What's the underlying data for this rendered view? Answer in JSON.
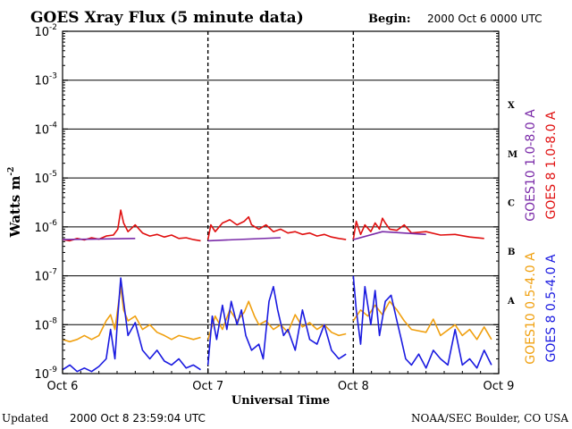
{
  "header": {
    "title": "GOES Xray Flux (5 minute data)",
    "begin_label": "Begin:",
    "begin_value": "2000 Oct 6 0000 UTC"
  },
  "footer": {
    "updated_label": "Updated",
    "updated_value": "2000 Oct  8 23:59:04 UTC",
    "credit": "NOAA/SEC Boulder, CO USA"
  },
  "chart_data": {
    "type": "line",
    "title": "GOES Xray Flux (5 minute data)",
    "xlabel": "Universal Time",
    "ylabel": "Watts m",
    "ylabel_superscript": "-2",
    "yscale": "log",
    "ylim": [
      1e-09,
      0.01
    ],
    "y_ticks": [
      {
        "base": "10",
        "exp": "-9"
      },
      {
        "base": "10",
        "exp": "-8"
      },
      {
        "base": "10",
        "exp": "-7"
      },
      {
        "base": "10",
        "exp": "-6"
      },
      {
        "base": "10",
        "exp": "-5"
      },
      {
        "base": "10",
        "exp": "-4"
      },
      {
        "base": "10",
        "exp": "-3"
      },
      {
        "base": "10",
        "exp": "-2"
      }
    ],
    "x_ticks": [
      "Oct 6",
      "Oct 7",
      "Oct 8",
      "Oct 9"
    ],
    "flare_classes": [
      {
        "label": "A",
        "level": 1e-08
      },
      {
        "label": "B",
        "level": 1e-07
      },
      {
        "label": "C",
        "level": 1e-06
      },
      {
        "label": "M",
        "level": 1e-05
      },
      {
        "label": "X",
        "level": 0.0001
      }
    ],
    "legend": [
      {
        "name": "GOES10 1.0-8.0 A",
        "color": "#7a2aa8"
      },
      {
        "name": "GOES 8 1.0-8.0 A",
        "color": "#e01010"
      },
      {
        "name": "GOES10 0.5-4.0 A",
        "color": "#f0a010"
      },
      {
        "name": "GOES 8 0.5-4.0 A",
        "color": "#1a1ae0"
      }
    ],
    "grid": true,
    "x_range_days": [
      0,
      3
    ],
    "series": [
      {
        "name": "GOES10 1.0-8.0 A",
        "color": "#7a2aa8",
        "points": [
          [
            0.0,
            5.5e-07
          ],
          [
            0.5,
            5.8e-07
          ],
          [
            1.0,
            5.2e-07
          ],
          [
            1.5,
            6e-07
          ],
          [
            2.0,
            5.5e-07
          ],
          [
            2.2,
            8e-07
          ],
          [
            2.5,
            7e-07
          ],
          [
            3.0,
            5.2e-07
          ]
        ]
      },
      {
        "name": "GOES 8 1.0-8.0 A",
        "color": "#e01010",
        "points": [
          [
            0.0,
            5.5e-07
          ],
          [
            0.05,
            5.2e-07
          ],
          [
            0.1,
            5.8e-07
          ],
          [
            0.15,
            5.4e-07
          ],
          [
            0.2,
            6e-07
          ],
          [
            0.25,
            5.6e-07
          ],
          [
            0.3,
            6.5e-07
          ],
          [
            0.35,
            6.8e-07
          ],
          [
            0.38,
            9e-07
          ],
          [
            0.4,
            2.2e-06
          ],
          [
            0.42,
            1.2e-06
          ],
          [
            0.45,
            8e-07
          ],
          [
            0.5,
            1.1e-06
          ],
          [
            0.55,
            7.5e-07
          ],
          [
            0.6,
            6.5e-07
          ],
          [
            0.65,
            7e-07
          ],
          [
            0.7,
            6.2e-07
          ],
          [
            0.75,
            6.8e-07
          ],
          [
            0.8,
            5.8e-07
          ],
          [
            0.85,
            6e-07
          ],
          [
            0.9,
            5.5e-07
          ],
          [
            0.95,
            5.2e-07
          ],
          [
            1.0,
            5.5e-07
          ],
          [
            1.02,
            1.1e-06
          ],
          [
            1.05,
            8e-07
          ],
          [
            1.1,
            1.2e-06
          ],
          [
            1.15,
            1.4e-06
          ],
          [
            1.2,
            1.1e-06
          ],
          [
            1.25,
            1.3e-06
          ],
          [
            1.28,
            1.6e-06
          ],
          [
            1.3,
            1.1e-06
          ],
          [
            1.35,
            9e-07
          ],
          [
            1.4,
            1.1e-06
          ],
          [
            1.45,
            8e-07
          ],
          [
            1.5,
            9e-07
          ],
          [
            1.55,
            7.5e-07
          ],
          [
            1.6,
            8e-07
          ],
          [
            1.65,
            7e-07
          ],
          [
            1.7,
            7.5e-07
          ],
          [
            1.75,
            6.5e-07
          ],
          [
            1.8,
            7e-07
          ],
          [
            1.85,
            6.2e-07
          ],
          [
            1.9,
            5.8e-07
          ],
          [
            1.95,
            5.5e-07
          ],
          [
            2.0,
            5.5e-07
          ],
          [
            2.02,
            1.3e-06
          ],
          [
            2.05,
            7e-07
          ],
          [
            2.08,
            1.1e-06
          ],
          [
            2.12,
            8e-07
          ],
          [
            2.15,
            1.2e-06
          ],
          [
            2.18,
            9e-07
          ],
          [
            2.2,
            1.5e-06
          ],
          [
            2.22,
            1.2e-06
          ],
          [
            2.25,
            9e-07
          ],
          [
            2.3,
            8.5e-07
          ],
          [
            2.35,
            1.1e-06
          ],
          [
            2.4,
            7.5e-07
          ],
          [
            2.5,
            8e-07
          ],
          [
            2.6,
            6.8e-07
          ],
          [
            2.7,
            7e-07
          ],
          [
            2.8,
            6.2e-07
          ],
          [
            2.9,
            5.8e-07
          ],
          [
            3.0,
            5.5e-07
          ]
        ]
      },
      {
        "name": "GOES10 0.5-4.0 A",
        "color": "#f0a010",
        "points": [
          [
            0.0,
            5e-09
          ],
          [
            0.05,
            4.5e-09
          ],
          [
            0.1,
            5e-09
          ],
          [
            0.15,
            6e-09
          ],
          [
            0.2,
            5e-09
          ],
          [
            0.25,
            6e-09
          ],
          [
            0.3,
            1.2e-08
          ],
          [
            0.33,
            1.6e-08
          ],
          [
            0.36,
            8e-09
          ],
          [
            0.4,
            6e-08
          ],
          [
            0.42,
            2e-08
          ],
          [
            0.45,
            1.2e-08
          ],
          [
            0.5,
            1.5e-08
          ],
          [
            0.55,
            8e-09
          ],
          [
            0.6,
            1e-08
          ],
          [
            0.65,
            7e-09
          ],
          [
            0.7,
            6e-09
          ],
          [
            0.75,
            5e-09
          ],
          [
            0.8,
            6e-09
          ],
          [
            0.85,
            5.5e-09
          ],
          [
            0.9,
            5e-09
          ],
          [
            0.95,
            5.5e-09
          ],
          [
            1.0,
            5e-09
          ],
          [
            1.05,
            1.5e-08
          ],
          [
            1.1,
            8e-09
          ],
          [
            1.15,
            2e-08
          ],
          [
            1.2,
            1.2e-08
          ],
          [
            1.25,
            1.8e-08
          ],
          [
            1.28,
            3e-08
          ],
          [
            1.32,
            1.5e-08
          ],
          [
            1.35,
            1e-08
          ],
          [
            1.4,
            1.2e-08
          ],
          [
            1.45,
            8e-09
          ],
          [
            1.5,
            1e-08
          ],
          [
            1.55,
            7e-09
          ],
          [
            1.6,
            1.6e-08
          ],
          [
            1.65,
            9e-09
          ],
          [
            1.7,
            1.1e-08
          ],
          [
            1.75,
            8e-09
          ],
          [
            1.8,
            1e-08
          ],
          [
            1.85,
            7e-09
          ],
          [
            1.9,
            6e-09
          ],
          [
            1.95,
            6.5e-09
          ],
          [
            2.0,
            1.2e-08
          ],
          [
            2.05,
            2e-08
          ],
          [
            2.1,
            1.5e-08
          ],
          [
            2.15,
            2.5e-08
          ],
          [
            2.2,
            1.6e-08
          ],
          [
            2.25,
            3e-08
          ],
          [
            2.3,
            2e-08
          ],
          [
            2.35,
            1.2e-08
          ],
          [
            2.4,
            8e-09
          ],
          [
            2.5,
            7e-09
          ],
          [
            2.55,
            1.3e-08
          ],
          [
            2.6,
            6e-09
          ],
          [
            2.7,
            1e-08
          ],
          [
            2.75,
            6e-09
          ],
          [
            2.8,
            8e-09
          ],
          [
            2.85,
            5e-09
          ],
          [
            2.9,
            9e-09
          ],
          [
            2.95,
            5e-09
          ],
          [
            3.0,
            6e-09
          ]
        ]
      },
      {
        "name": "GOES 8 0.5-4.0 A",
        "color": "#1a1ae0",
        "points": [
          [
            0.0,
            1.2e-09
          ],
          [
            0.05,
            1.5e-09
          ],
          [
            0.1,
            1.1e-09
          ],
          [
            0.15,
            1.3e-09
          ],
          [
            0.2,
            1.1e-09
          ],
          [
            0.25,
            1.4e-09
          ],
          [
            0.3,
            2e-09
          ],
          [
            0.33,
            8e-09
          ],
          [
            0.36,
            2e-09
          ],
          [
            0.38,
            1.5e-08
          ],
          [
            0.4,
            9e-08
          ],
          [
            0.42,
            3e-08
          ],
          [
            0.45,
            6e-09
          ],
          [
            0.5,
            1.1e-08
          ],
          [
            0.55,
            3e-09
          ],
          [
            0.6,
            2e-09
          ],
          [
            0.65,
            3e-09
          ],
          [
            0.7,
            1.8e-09
          ],
          [
            0.75,
            1.5e-09
          ],
          [
            0.8,
            2e-09
          ],
          [
            0.85,
            1.3e-09
          ],
          [
            0.9,
            1.5e-09
          ],
          [
            0.95,
            1.2e-09
          ],
          [
            1.0,
            1.5e-09
          ],
          [
            1.03,
            1.5e-08
          ],
          [
            1.06,
            5e-09
          ],
          [
            1.1,
            2.5e-08
          ],
          [
            1.13,
            8e-09
          ],
          [
            1.16,
            3e-08
          ],
          [
            1.2,
            1e-08
          ],
          [
            1.23,
            2e-08
          ],
          [
            1.26,
            6e-09
          ],
          [
            1.3,
            3e-09
          ],
          [
            1.35,
            4e-09
          ],
          [
            1.38,
            2e-09
          ],
          [
            1.42,
            3e-08
          ],
          [
            1.45,
            6e-08
          ],
          [
            1.48,
            2e-08
          ],
          [
            1.52,
            6e-09
          ],
          [
            1.55,
            8e-09
          ],
          [
            1.6,
            3e-09
          ],
          [
            1.65,
            2e-08
          ],
          [
            1.7,
            5e-09
          ],
          [
            1.75,
            4e-09
          ],
          [
            1.8,
            1e-08
          ],
          [
            1.85,
            3e-09
          ],
          [
            1.9,
            2e-09
          ],
          [
            1.95,
            2.5e-09
          ],
          [
            2.0,
            1e-07
          ],
          [
            2.02,
            2e-08
          ],
          [
            2.05,
            4e-09
          ],
          [
            2.08,
            6e-08
          ],
          [
            2.12,
            1e-08
          ],
          [
            2.15,
            5e-08
          ],
          [
            2.18,
            6e-09
          ],
          [
            2.22,
            3e-08
          ],
          [
            2.26,
            4e-08
          ],
          [
            2.3,
            1.2e-08
          ],
          [
            2.33,
            5e-09
          ],
          [
            2.36,
            2e-09
          ],
          [
            2.4,
            1.5e-09
          ],
          [
            2.45,
            2.5e-09
          ],
          [
            2.5,
            1.3e-09
          ],
          [
            2.55,
            3e-09
          ],
          [
            2.6,
            2e-09
          ],
          [
            2.65,
            1.5e-09
          ],
          [
            2.7,
            8e-09
          ],
          [
            2.75,
            1.5e-09
          ],
          [
            2.8,
            2e-09
          ],
          [
            2.85,
            1.3e-09
          ],
          [
            2.9,
            3e-09
          ],
          [
            2.95,
            1.5e-09
          ],
          [
            3.0,
            2e-09
          ]
        ]
      }
    ]
  }
}
